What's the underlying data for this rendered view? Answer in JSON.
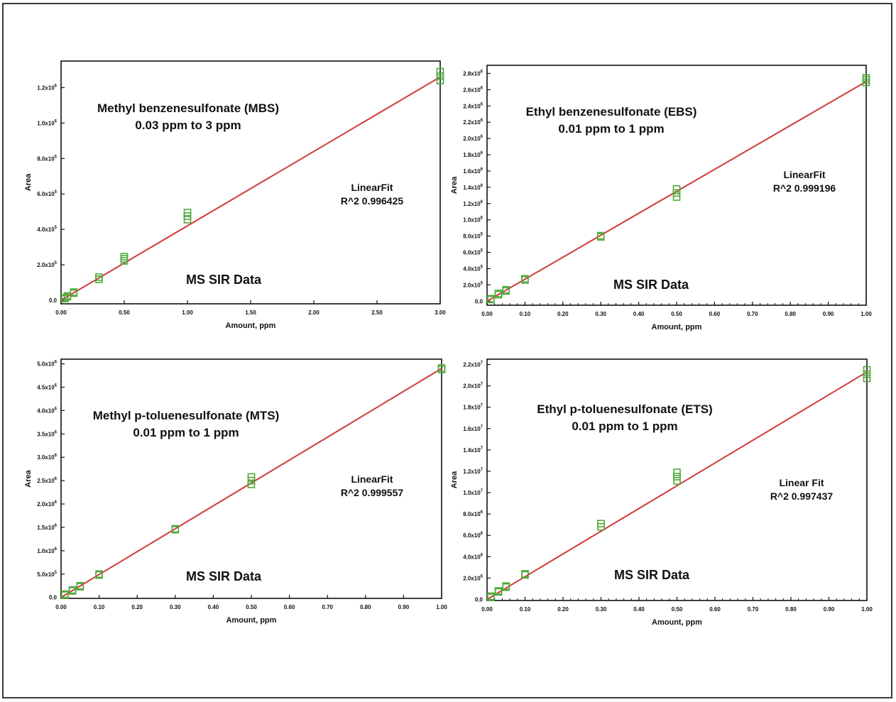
{
  "colors": {
    "fit_line": "#d0393b",
    "marker": "#4fa83a",
    "axis": "#111111"
  },
  "chart_data": [
    {
      "type": "scatter",
      "title": "Methyl benzenesulfonate (MBS)",
      "subtitle": "0.03 ppm to 3 ppm",
      "fit_label": "LinearFit",
      "fit_value": "R^2  0.996425",
      "note": "MS SIR Data",
      "xlabel": "Amount, ppm",
      "ylabel": "Area",
      "xlim": [
        0,
        3
      ],
      "ylim": [
        -20000,
        1350000
      ],
      "x_ticks": [
        "0.00",
        "0.50",
        "1.00",
        "1.50",
        "2.00",
        "2.50",
        "3.00"
      ],
      "y_ticks": [
        "0.0",
        "2.0x10^5",
        "4.0x10^5",
        "6.0x10^5",
        "8.0x10^5",
        "1.0x10^6",
        "1.2x10^6"
      ],
      "x_minor_ticks": false,
      "fit": {
        "slope": 420000,
        "intercept": 0
      },
      "points": [
        [
          0.03,
          10000
        ],
        [
          0.03,
          13000
        ],
        [
          0.05,
          20000
        ],
        [
          0.05,
          24000
        ],
        [
          0.1,
          40000
        ],
        [
          0.1,
          46000
        ],
        [
          0.3,
          118000
        ],
        [
          0.3,
          130000
        ],
        [
          0.5,
          222000
        ],
        [
          0.5,
          234000
        ],
        [
          0.5,
          246000
        ],
        [
          1.0,
          455000
        ],
        [
          1.0,
          475000
        ],
        [
          1.0,
          495000
        ],
        [
          3.0,
          1240000
        ],
        [
          3.0,
          1265000
        ],
        [
          3.0,
          1290000
        ]
      ]
    },
    {
      "type": "scatter",
      "title": "Ethyl benzenesulfonate (EBS)",
      "subtitle": "0.01 ppm to 1 ppm",
      "fit_label": "LinearFit",
      "fit_value": "R^2  0.999196",
      "note": "MS SIR Data",
      "xlabel": "Amount, ppm",
      "ylabel": "Area",
      "xlim": [
        0,
        1
      ],
      "ylim": [
        -50000,
        2900000
      ],
      "x_ticks": [
        "0.00",
        "0.10",
        "0.20",
        "0.30",
        "0.40",
        "0.50",
        "0.60",
        "0.70",
        "0.80",
        "0.90",
        "1.00"
      ],
      "y_ticks": [
        "0.0",
        "2.0x10^5",
        "4.0x10^5",
        "6.0x10^5",
        "8.0x10^5",
        "1.0x10^6",
        "1.2x10^6",
        "1.4x10^6",
        "1.6x10^6",
        "1.8x10^6",
        "2.0x10^6",
        "2.2x10^6",
        "2.4x10^6",
        "2.6x10^6",
        "2.8x10^6"
      ],
      "x_minor_ticks": true,
      "fit": {
        "slope": 2700000,
        "intercept": 0
      },
      "points": [
        [
          0.01,
          20000
        ],
        [
          0.01,
          30000
        ],
        [
          0.03,
          80000
        ],
        [
          0.03,
          95000
        ],
        [
          0.05,
          125000
        ],
        [
          0.05,
          140000
        ],
        [
          0.1,
          260000
        ],
        [
          0.1,
          275000
        ],
        [
          0.3,
          790000
        ],
        [
          0.3,
          805000
        ],
        [
          0.5,
          1280000
        ],
        [
          0.5,
          1330000
        ],
        [
          0.5,
          1380000
        ],
        [
          1.0,
          2690000
        ],
        [
          1.0,
          2720000
        ],
        [
          1.0,
          2745000
        ]
      ]
    },
    {
      "type": "scatter",
      "title": "Methyl p-toluenesulfonate (MTS)",
      "subtitle": "0.01 ppm to 1 ppm",
      "fit_label": "LinearFit",
      "fit_value": "R^2  0.999557",
      "note": "MS SIR Data",
      "xlabel": "Amount, ppm",
      "ylabel": "Area",
      "xlim": [
        0,
        1
      ],
      "ylim": [
        -20000,
        5100000
      ],
      "x_ticks": [
        "0.00",
        "0.10",
        "0.20",
        "0.30",
        "0.40",
        "0.50",
        "0.60",
        "0.70",
        "0.80",
        "0.90",
        "1.00"
      ],
      "y_ticks": [
        "0.0",
        "5.0x10^5",
        "1.0x10^6",
        "1.5x10^6",
        "2.0x10^6",
        "2.5x10^6",
        "3.0x10^6",
        "3.5x10^6",
        "4.0x10^6",
        "4.5x10^6",
        "5.0x10^6"
      ],
      "x_minor_ticks": false,
      "fit": {
        "slope": 4900000,
        "intercept": 0
      },
      "points": [
        [
          0.01,
          50000
        ],
        [
          0.01,
          70000
        ],
        [
          0.03,
          140000
        ],
        [
          0.03,
          160000
        ],
        [
          0.05,
          230000
        ],
        [
          0.05,
          250000
        ],
        [
          0.1,
          480000
        ],
        [
          0.1,
          500000
        ],
        [
          0.3,
          1450000
        ],
        [
          0.3,
          1470000
        ],
        [
          0.5,
          2420000
        ],
        [
          0.5,
          2500000
        ],
        [
          0.5,
          2580000
        ],
        [
          1.0,
          4880000
        ],
        [
          1.0,
          4910000
        ]
      ]
    },
    {
      "type": "scatter",
      "title": "Ethyl p-toluenesulfonate (ETS)",
      "subtitle": "0.01 ppm to 1 ppm",
      "fit_label": "Linear Fit",
      "fit_value": "R^2  0.997437",
      "note": "MS SIR Data",
      "xlabel": "Amount, ppm",
      "ylabel": "Area",
      "xlim": [
        0,
        1
      ],
      "ylim": [
        -100000,
        22500000
      ],
      "x_ticks": [
        "0.00",
        "0.10",
        "0.20",
        "0.30",
        "0.40",
        "0.50",
        "0.60",
        "0.70",
        "0.80",
        "0.90",
        "1.00"
      ],
      "y_ticks": [
        "0.0",
        "2.0x10^6",
        "4.0x10^6",
        "6.0x10^6",
        "8.0x10^6",
        "1.0x10^7",
        "1.2x10^7",
        "1.4x10^7",
        "1.6x10^7",
        "1.8x10^7",
        "2.0x10^7",
        "2.2x10^7"
      ],
      "x_minor_ticks": true,
      "fit": {
        "slope": 21300000,
        "intercept": 0
      },
      "points": [
        [
          0.01,
          200000
        ],
        [
          0.01,
          300000
        ],
        [
          0.03,
          700000
        ],
        [
          0.03,
          800000
        ],
        [
          0.05,
          1150000
        ],
        [
          0.05,
          1250000
        ],
        [
          0.1,
          2300000
        ],
        [
          0.1,
          2400000
        ],
        [
          0.3,
          6800000
        ],
        [
          0.3,
          7100000
        ],
        [
          0.5,
          11100000
        ],
        [
          0.5,
          11500000
        ],
        [
          0.5,
          11900000
        ],
        [
          1.0,
          20700000
        ],
        [
          1.0,
          21100000
        ],
        [
          1.0,
          21500000
        ]
      ]
    }
  ]
}
